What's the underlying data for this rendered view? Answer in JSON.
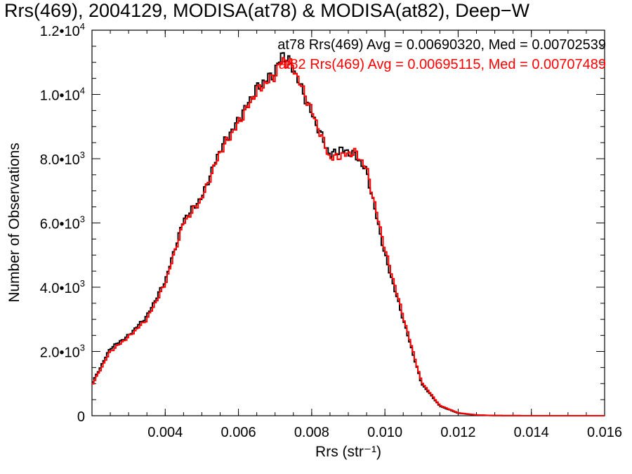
{
  "chart_data": {
    "type": "line",
    "title": "Rrs(469), 2004129, MODISA(at78) & MODISA(at82), Deep−W",
    "xlabel": "Rrs (str⁻¹)",
    "ylabel": "Number of Observations",
    "xlim": [
      0.002,
      0.016
    ],
    "ylim": [
      0,
      12000
    ],
    "x_ticks": [
      {
        "value": 0.004,
        "label": "0.004"
      },
      {
        "value": 0.006,
        "label": "0.006"
      },
      {
        "value": 0.008,
        "label": "0.008"
      },
      {
        "value": 0.01,
        "label": "0.010"
      },
      {
        "value": 0.012,
        "label": "0.012"
      },
      {
        "value": 0.014,
        "label": "0.014"
      },
      {
        "value": 0.016,
        "label": "0.016"
      }
    ],
    "y_ticks": [
      {
        "value": 0,
        "mantissa": "0",
        "exponent": ""
      },
      {
        "value": 2000,
        "mantissa": "2.0•10",
        "exponent": "3"
      },
      {
        "value": 4000,
        "mantissa": "4.0•10",
        "exponent": "3"
      },
      {
        "value": 6000,
        "mantissa": "6.0•10",
        "exponent": "3"
      },
      {
        "value": 8000,
        "mantissa": "8.0•10",
        "exponent": "3"
      },
      {
        "value": 10000,
        "mantissa": "1.0•10",
        "exponent": "4"
      },
      {
        "value": 12000,
        "mantissa": "1.2•10",
        "exponent": "4"
      }
    ],
    "x": [
      0.002,
      0.0025,
      0.003,
      0.0035,
      0.004,
      0.0045,
      0.005,
      0.0055,
      0.006,
      0.0065,
      0.007,
      0.0072,
      0.0075,
      0.008,
      0.0085,
      0.0088,
      0.0092,
      0.0095,
      0.01,
      0.0105,
      0.011,
      0.0115,
      0.012,
      0.0125,
      0.013,
      0.014,
      0.015,
      0.016
    ],
    "series": [
      {
        "name": "at78",
        "color": "#000000",
        "values": [
          1000,
          2100,
          2500,
          3100,
          4200,
          6100,
          6800,
          8300,
          9200,
          10200,
          10700,
          11300,
          10800,
          9400,
          8100,
          8300,
          8100,
          7600,
          5000,
          3000,
          1000,
          300,
          80,
          20,
          5,
          0,
          0,
          0
        ]
      },
      {
        "name": "at82",
        "color": "#ff0000",
        "values": [
          950,
          2000,
          2450,
          3000,
          4100,
          6000,
          6750,
          8200,
          9100,
          10100,
          10600,
          11100,
          10850,
          9500,
          8000,
          8100,
          8200,
          7700,
          5200,
          3100,
          1050,
          320,
          90,
          25,
          5,
          0,
          0,
          0
        ]
      }
    ],
    "legend": {
      "placement": "top-right",
      "entries": [
        {
          "text": "at78 Rrs(469) Avg = 0.00690320, Med = 0.00702539",
          "color": "#000000"
        },
        {
          "text": "at82 Rrs(469) Avg = 0.00695115, Med = 0.00707489",
          "color": "#ff0000"
        }
      ]
    },
    "grid": false
  }
}
